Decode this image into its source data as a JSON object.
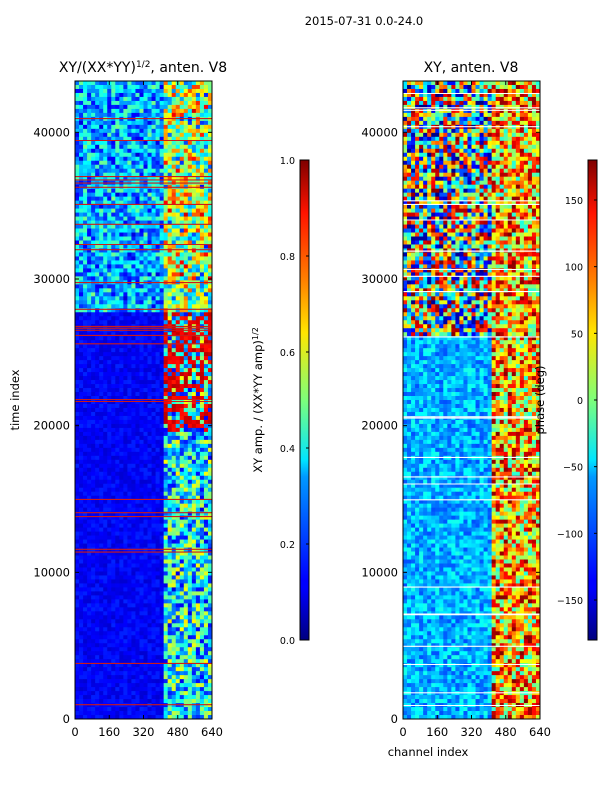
{
  "figure": {
    "suptitle": "2015-07-31 0.0-24.0"
  },
  "chart_data": [
    {
      "type": "heatmap",
      "title": "XY/(XX*YY)¹⁄², anten. V8",
      "title_prefix": "XY/(XX*YY)",
      "title_exp": "1/2",
      "title_suffix": ", anten. V8",
      "xlabel": "",
      "ylabel": "time index",
      "xlim": [
        0,
        640
      ],
      "ylim": [
        0,
        43500
      ],
      "xticks": [
        0,
        160,
        320,
        480,
        640
      ],
      "yticks": [
        0,
        10000,
        20000,
        30000,
        40000
      ],
      "x_tick_labels": [
        "0",
        "160",
        "320",
        "480",
        "640"
      ],
      "y_tick_labels": [
        "0",
        "10000",
        "20000",
        "30000",
        "40000"
      ],
      "colormap": "jet",
      "colorbar": {
        "label": "XY amp. / (XX*YY amp)¹⁄²",
        "label_prefix": "XY amp. / (XX*YY amp)",
        "label_exp": "1/2",
        "range": [
          0.0,
          1.0
        ],
        "ticks": [
          0.0,
          0.2,
          0.4,
          0.6,
          0.8,
          1.0
        ],
        "tick_labels": [
          "0.0",
          "0.2",
          "0.4",
          "0.6",
          "0.8",
          "1.0"
        ]
      }
    },
    {
      "type": "heatmap",
      "title": "XY, anten. V8",
      "xlabel": "channel index",
      "ylabel": "",
      "xlim": [
        0,
        640
      ],
      "ylim": [
        0,
        43500
      ],
      "xticks": [
        0,
        160,
        320,
        480,
        640
      ],
      "yticks": [
        0,
        10000,
        20000,
        30000,
        40000
      ],
      "x_tick_labels": [
        "0",
        "160",
        "320",
        "480",
        "640"
      ],
      "y_tick_labels": [
        "0",
        "10000",
        "20000",
        "30000",
        "40000"
      ],
      "colormap": "jet",
      "colorbar": {
        "label": "phase (deg)",
        "range": [
          -180,
          180
        ],
        "ticks": [
          -150,
          -100,
          -50,
          0,
          50,
          100,
          150
        ],
        "tick_labels": [
          "−150",
          "−100",
          "−50",
          "0",
          "50",
          "100",
          "150"
        ]
      }
    }
  ]
}
